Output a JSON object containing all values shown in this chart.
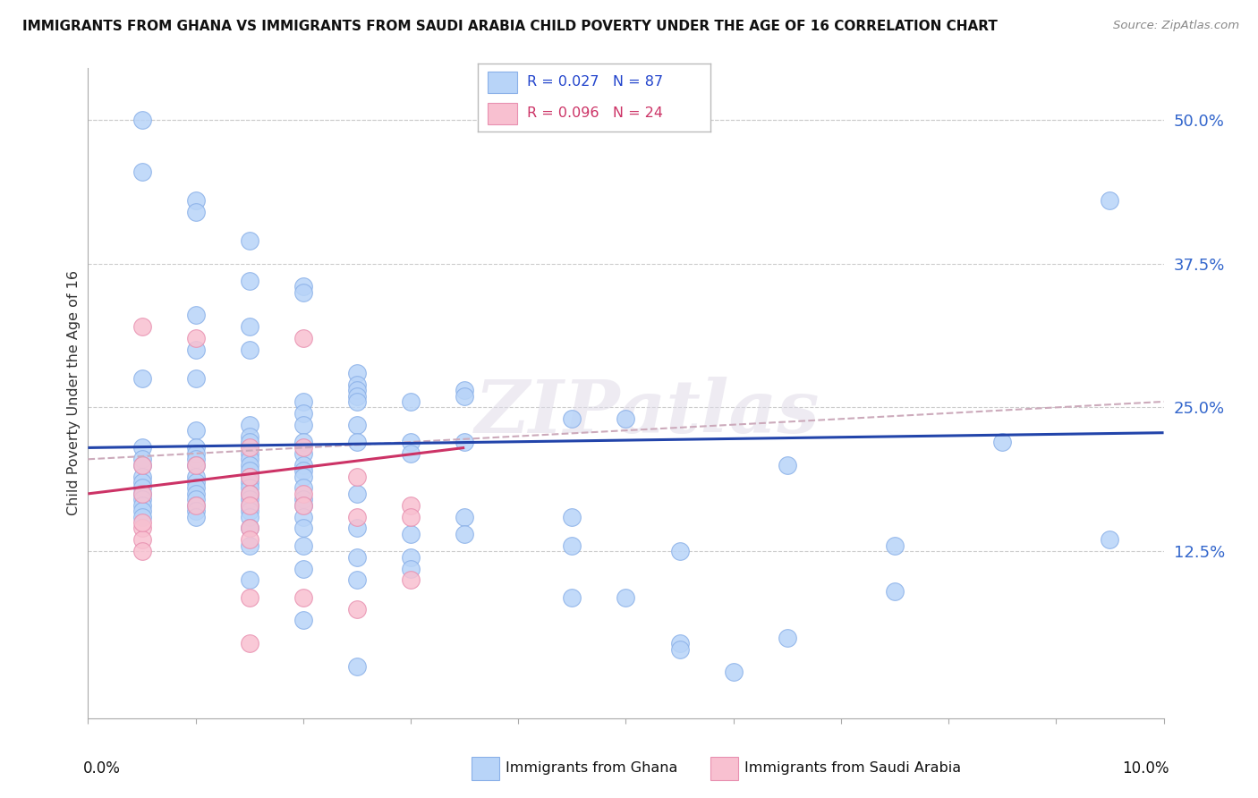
{
  "title": "IMMIGRANTS FROM GHANA VS IMMIGRANTS FROM SAUDI ARABIA CHILD POVERTY UNDER THE AGE OF 16 CORRELATION CHART",
  "source": "Source: ZipAtlas.com",
  "ylabel": "Child Poverty Under the Age of 16",
  "right_yticks": [
    "50.0%",
    "37.5%",
    "25.0%",
    "12.5%"
  ],
  "right_ytick_vals": [
    0.5,
    0.375,
    0.25,
    0.125
  ],
  "ghana_color": "#b8d4f8",
  "ghana_edge_color": "#8ab0e8",
  "saudi_color": "#f8c0d0",
  "saudi_edge_color": "#e890b0",
  "ghana_line_color": "#2244aa",
  "saudi_line_color": "#cc3366",
  "dashed_color": "#ccaabb",
  "ghana_scatter": [
    [
      0.5,
      0.5
    ],
    [
      0.5,
      0.455
    ],
    [
      1.0,
      0.43
    ],
    [
      1.0,
      0.42
    ],
    [
      1.5,
      0.395
    ],
    [
      1.5,
      0.36
    ],
    [
      2.0,
      0.355
    ],
    [
      2.0,
      0.35
    ],
    [
      1.0,
      0.33
    ],
    [
      1.5,
      0.32
    ],
    [
      1.0,
      0.3
    ],
    [
      1.5,
      0.3
    ],
    [
      2.5,
      0.28
    ],
    [
      0.5,
      0.275
    ],
    [
      1.0,
      0.275
    ],
    [
      2.5,
      0.27
    ],
    [
      2.5,
      0.265
    ],
    [
      2.5,
      0.26
    ],
    [
      3.5,
      0.265
    ],
    [
      3.5,
      0.26
    ],
    [
      2.0,
      0.255
    ],
    [
      2.5,
      0.255
    ],
    [
      3.0,
      0.255
    ],
    [
      2.0,
      0.245
    ],
    [
      4.5,
      0.24
    ],
    [
      5.0,
      0.24
    ],
    [
      1.5,
      0.235
    ],
    [
      2.0,
      0.235
    ],
    [
      2.5,
      0.235
    ],
    [
      1.0,
      0.23
    ],
    [
      1.5,
      0.225
    ],
    [
      1.5,
      0.22
    ],
    [
      2.0,
      0.22
    ],
    [
      2.5,
      0.22
    ],
    [
      3.0,
      0.22
    ],
    [
      3.5,
      0.22
    ],
    [
      0.5,
      0.215
    ],
    [
      1.0,
      0.215
    ],
    [
      1.0,
      0.21
    ],
    [
      1.5,
      0.21
    ],
    [
      2.0,
      0.21
    ],
    [
      3.0,
      0.21
    ],
    [
      0.5,
      0.205
    ],
    [
      1.0,
      0.205
    ],
    [
      1.5,
      0.205
    ],
    [
      0.5,
      0.2
    ],
    [
      1.0,
      0.2
    ],
    [
      1.5,
      0.2
    ],
    [
      2.0,
      0.2
    ],
    [
      1.5,
      0.195
    ],
    [
      2.0,
      0.195
    ],
    [
      0.5,
      0.19
    ],
    [
      1.0,
      0.19
    ],
    [
      1.5,
      0.19
    ],
    [
      2.0,
      0.19
    ],
    [
      0.5,
      0.185
    ],
    [
      1.0,
      0.185
    ],
    [
      1.5,
      0.185
    ],
    [
      0.5,
      0.18
    ],
    [
      1.0,
      0.18
    ],
    [
      1.5,
      0.18
    ],
    [
      2.0,
      0.18
    ],
    [
      0.5,
      0.175
    ],
    [
      1.0,
      0.175
    ],
    [
      1.5,
      0.175
    ],
    [
      2.5,
      0.175
    ],
    [
      0.5,
      0.17
    ],
    [
      1.0,
      0.17
    ],
    [
      1.5,
      0.17
    ],
    [
      2.0,
      0.17
    ],
    [
      0.5,
      0.165
    ],
    [
      1.0,
      0.165
    ],
    [
      1.5,
      0.165
    ],
    [
      2.0,
      0.165
    ],
    [
      0.5,
      0.16
    ],
    [
      1.0,
      0.16
    ],
    [
      1.5,
      0.16
    ],
    [
      0.5,
      0.155
    ],
    [
      1.0,
      0.155
    ],
    [
      1.5,
      0.155
    ],
    [
      2.0,
      0.155
    ],
    [
      3.5,
      0.155
    ],
    [
      4.5,
      0.155
    ],
    [
      1.5,
      0.145
    ],
    [
      2.0,
      0.145
    ],
    [
      2.5,
      0.145
    ],
    [
      3.0,
      0.14
    ],
    [
      3.5,
      0.14
    ],
    [
      1.5,
      0.13
    ],
    [
      2.0,
      0.13
    ],
    [
      4.5,
      0.13
    ],
    [
      2.5,
      0.12
    ],
    [
      3.0,
      0.12
    ],
    [
      5.5,
      0.125
    ],
    [
      2.0,
      0.11
    ],
    [
      3.0,
      0.11
    ],
    [
      1.5,
      0.1
    ],
    [
      2.5,
      0.1
    ],
    [
      4.5,
      0.085
    ],
    [
      5.0,
      0.085
    ],
    [
      2.0,
      0.065
    ],
    [
      5.5,
      0.045
    ],
    [
      5.5,
      0.04
    ],
    [
      2.5,
      0.025
    ],
    [
      6.5,
      0.2
    ],
    [
      9.5,
      0.43
    ],
    [
      8.5,
      0.22
    ],
    [
      9.5,
      0.135
    ],
    [
      6.0,
      0.02
    ],
    [
      6.5,
      0.05
    ],
    [
      7.5,
      0.13
    ],
    [
      7.5,
      0.09
    ]
  ],
  "saudi_scatter": [
    [
      0.5,
      0.32
    ],
    [
      1.0,
      0.31
    ],
    [
      2.0,
      0.31
    ],
    [
      2.0,
      0.215
    ],
    [
      1.5,
      0.215
    ],
    [
      0.5,
      0.2
    ],
    [
      1.0,
      0.2
    ],
    [
      1.5,
      0.19
    ],
    [
      2.5,
      0.19
    ],
    [
      0.5,
      0.175
    ],
    [
      1.5,
      0.175
    ],
    [
      2.0,
      0.175
    ],
    [
      1.0,
      0.165
    ],
    [
      1.5,
      0.165
    ],
    [
      2.0,
      0.165
    ],
    [
      3.0,
      0.165
    ],
    [
      2.5,
      0.155
    ],
    [
      3.0,
      0.155
    ],
    [
      0.5,
      0.145
    ],
    [
      1.5,
      0.145
    ],
    [
      0.5,
      0.135
    ],
    [
      1.5,
      0.135
    ],
    [
      0.5,
      0.125
    ],
    [
      3.0,
      0.1
    ],
    [
      1.5,
      0.085
    ],
    [
      2.0,
      0.085
    ],
    [
      2.5,
      0.075
    ],
    [
      1.5,
      0.045
    ],
    [
      0.5,
      0.15
    ]
  ],
  "ghana_trend_x": [
    0.0,
    10.0
  ],
  "ghana_trend_y": [
    0.215,
    0.228
  ],
  "saudi_trend_x": [
    0.0,
    3.5
  ],
  "saudi_trend_y": [
    0.175,
    0.215
  ],
  "dashed_trend_x": [
    0.0,
    10.0
  ],
  "dashed_trend_y": [
    0.205,
    0.255
  ],
  "xmin": 0.0,
  "xmax": 10.0,
  "ymin": -0.02,
  "ymax": 0.545,
  "xtick_positions": [
    0.0,
    1.0,
    2.0,
    3.0,
    4.0,
    5.0,
    6.0,
    7.0,
    8.0,
    9.0,
    10.0
  ]
}
